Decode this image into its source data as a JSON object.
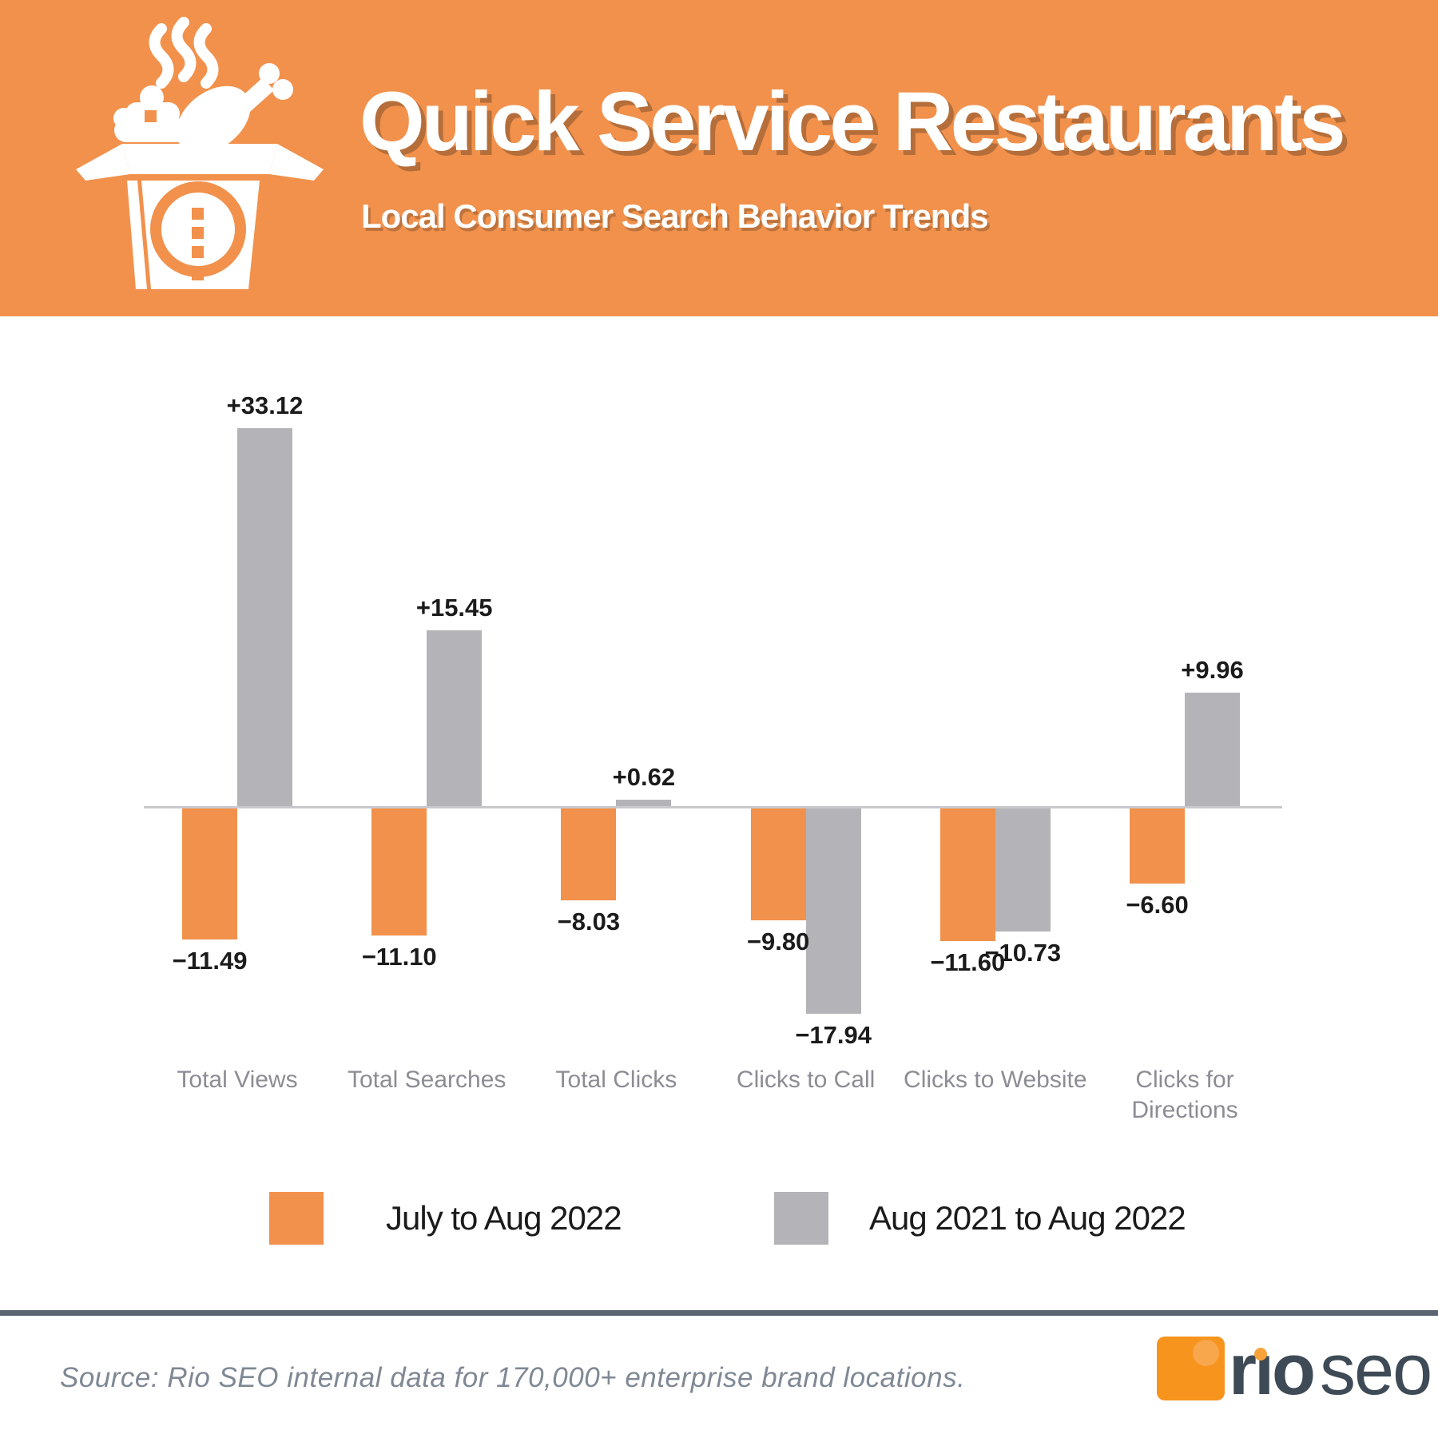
{
  "header": {
    "title": "Quick Service Restaurants",
    "subtitle": "Local Consumer Search Behavior Trends",
    "icon_name": "takeout-box-icon"
  },
  "chart_data": {
    "type": "bar",
    "categories": [
      "Total Views",
      "Total Searches",
      "Total Clicks",
      "Clicks to Call",
      "Clicks to Website",
      "Clicks for\nDirections"
    ],
    "series": [
      {
        "name": "July to Aug 2022",
        "color": "#F1914C",
        "values": [
          -11.49,
          -11.1,
          -8.03,
          -9.8,
          -11.6,
          -6.6
        ],
        "labels": [
          "−11.49",
          "−11.10",
          "−8.03",
          "−9.80",
          "−11.60",
          "−6.60"
        ]
      },
      {
        "name": "Aug 2021 to Aug 2022",
        "color": "#B4B4B8",
        "values": [
          33.12,
          15.45,
          0.62,
          -17.94,
          -10.73,
          9.96
        ],
        "labels": [
          "+33.12",
          "+15.45",
          "+0.62",
          "−17.94",
          "−10.73",
          "+9.96"
        ]
      }
    ],
    "baseline": 0,
    "grid": false,
    "legend_position": "bottom",
    "ylim": [
      -20,
      35
    ]
  },
  "footer": {
    "source": "Source: Rio SEO internal data for 170,000+ enterprise brand locations.",
    "brand": {
      "rio": "rio",
      "seo": "seo"
    }
  },
  "colors": {
    "header_bg": "#F1914C",
    "bar_orange": "#F1914C",
    "bar_gray": "#B4B4B8",
    "axis_line": "#C9C9CC",
    "value_label": "#1B1B1B",
    "category_label": "#8C8C94",
    "divider": "#5A6472",
    "source_text": "#7F8894",
    "logo_orange": "#F7941E",
    "logo_text": "#3E4A55"
  }
}
